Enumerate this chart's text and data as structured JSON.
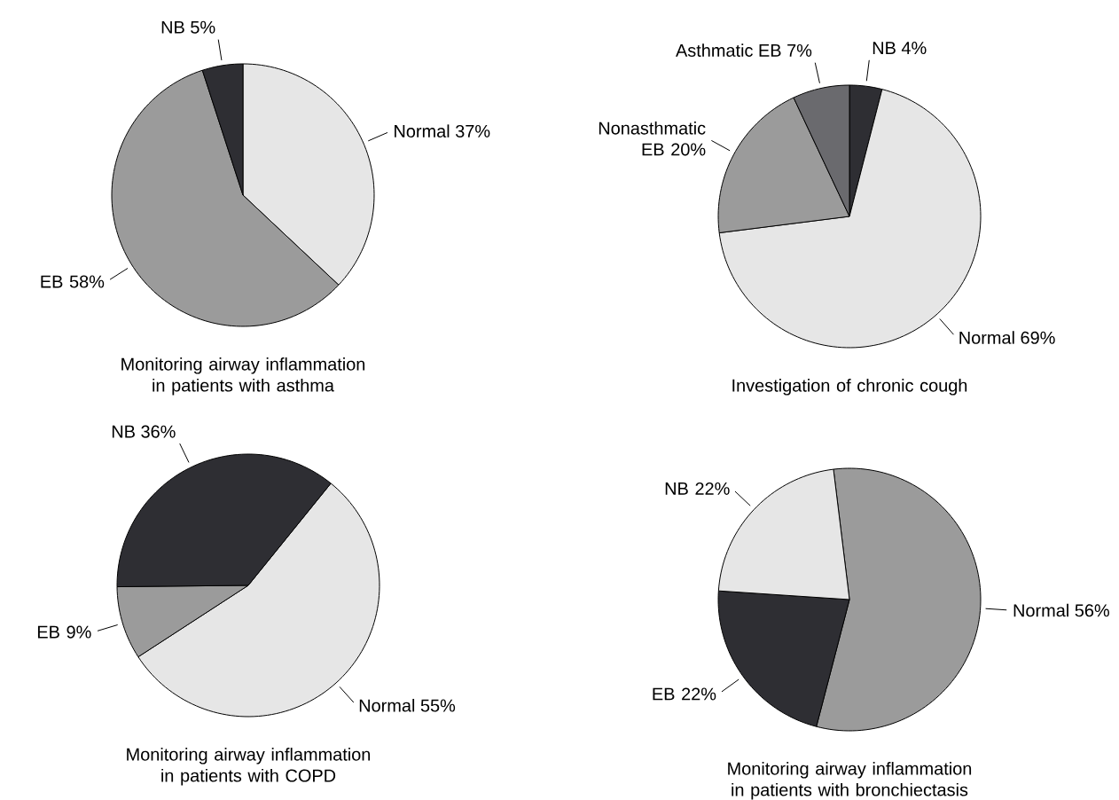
{
  "chart_data": [
    {
      "type": "pie",
      "title": "Monitoring airway inflammation in patients with asthma",
      "categories": [
        "Normal",
        "EB",
        "NB"
      ],
      "values": [
        37,
        58,
        5
      ],
      "value_labels": [
        "37%",
        "58%",
        "5%"
      ],
      "colors": [
        "#e6e6e6",
        "#9b9b9b",
        "#2e2e33"
      ]
    },
    {
      "type": "pie",
      "title": "Investigation of chronic cough",
      "categories": [
        "NB",
        "Normal",
        "Nonasthmatic EB",
        "Asthmatic EB"
      ],
      "values": [
        4,
        69,
        20,
        7
      ],
      "value_labels": [
        "4%",
        "69%",
        "20%",
        "7%"
      ],
      "colors": [
        "#2e2e33",
        "#e6e6e6",
        "#9b9b9b",
        "#6a6a6e"
      ]
    },
    {
      "type": "pie",
      "title": "Monitoring airway inflammation in patients with COPD",
      "categories": [
        "Normal",
        "EB",
        "NB"
      ],
      "values": [
        55,
        9,
        36
      ],
      "value_labels": [
        "55%",
        "9%",
        "36%"
      ],
      "colors": [
        "#e6e6e6",
        "#9b9b9b",
        "#2e2e33"
      ]
    },
    {
      "type": "pie",
      "title": "Monitoring airway inflammation in patients with bronchiectasis",
      "categories": [
        "Normal",
        "EB",
        "NB"
      ],
      "values": [
        56,
        22,
        22
      ],
      "value_labels": [
        "56%",
        "22%",
        "22%"
      ],
      "colors": [
        "#9b9b9b",
        "#2e2e33",
        "#e6e6e6"
      ]
    }
  ]
}
